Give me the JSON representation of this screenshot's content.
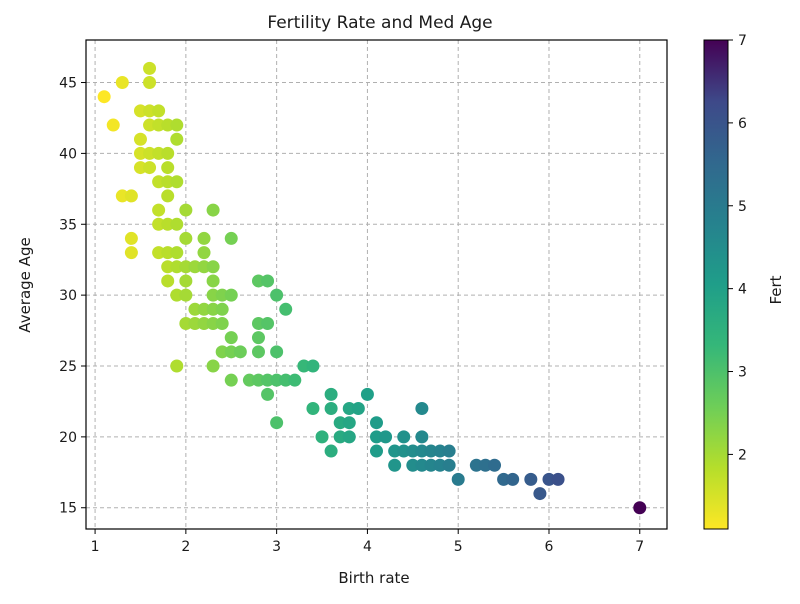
{
  "chart_data": {
    "type": "scatter",
    "title": "Fertility Rate and Med Age",
    "xlabel": "Birth rate",
    "ylabel": "Average Age",
    "xlim": [
      0.9,
      7.3
    ],
    "ylim": [
      13.5,
      48
    ],
    "xticks": [
      1,
      2,
      3,
      4,
      5,
      6,
      7
    ],
    "yticks": [
      15,
      20,
      25,
      30,
      35,
      40,
      45
    ],
    "grid": true,
    "grid_style": "dashed",
    "colormap": "viridis_r",
    "colorbar": {
      "label": "Fert",
      "range": [
        1.1,
        7.0
      ],
      "ticks": [
        2,
        3,
        4,
        5,
        6,
        7
      ]
    },
    "points": [
      {
        "x": 1.1,
        "y": 44
      },
      {
        "x": 1.2,
        "y": 42
      },
      {
        "x": 1.3,
        "y": 45
      },
      {
        "x": 1.3,
        "y": 37
      },
      {
        "x": 1.4,
        "y": 37
      },
      {
        "x": 1.4,
        "y": 34
      },
      {
        "x": 1.4,
        "y": 33
      },
      {
        "x": 1.5,
        "y": 43
      },
      {
        "x": 1.5,
        "y": 41
      },
      {
        "x": 1.5,
        "y": 40
      },
      {
        "x": 1.5,
        "y": 39
      },
      {
        "x": 1.6,
        "y": 46
      },
      {
        "x": 1.6,
        "y": 45
      },
      {
        "x": 1.6,
        "y": 43
      },
      {
        "x": 1.6,
        "y": 42
      },
      {
        "x": 1.6,
        "y": 40
      },
      {
        "x": 1.6,
        "y": 39
      },
      {
        "x": 1.7,
        "y": 43
      },
      {
        "x": 1.7,
        "y": 42
      },
      {
        "x": 1.7,
        "y": 40
      },
      {
        "x": 1.7,
        "y": 38
      },
      {
        "x": 1.7,
        "y": 36
      },
      {
        "x": 1.7,
        "y": 35
      },
      {
        "x": 1.7,
        "y": 33
      },
      {
        "x": 1.8,
        "y": 42
      },
      {
        "x": 1.8,
        "y": 40
      },
      {
        "x": 1.8,
        "y": 39
      },
      {
        "x": 1.8,
        "y": 38
      },
      {
        "x": 1.8,
        "y": 37
      },
      {
        "x": 1.8,
        "y": 35
      },
      {
        "x": 1.8,
        "y": 33
      },
      {
        "x": 1.8,
        "y": 32
      },
      {
        "x": 1.8,
        "y": 31
      },
      {
        "x": 1.9,
        "y": 42
      },
      {
        "x": 1.9,
        "y": 41
      },
      {
        "x": 1.9,
        "y": 38
      },
      {
        "x": 1.9,
        "y": 35
      },
      {
        "x": 1.9,
        "y": 33
      },
      {
        "x": 1.9,
        "y": 32
      },
      {
        "x": 1.9,
        "y": 30
      },
      {
        "x": 1.9,
        "y": 25
      },
      {
        "x": 2.0,
        "y": 36
      },
      {
        "x": 2.0,
        "y": 34
      },
      {
        "x": 2.0,
        "y": 32
      },
      {
        "x": 2.0,
        "y": 31
      },
      {
        "x": 2.0,
        "y": 30
      },
      {
        "x": 2.0,
        "y": 28
      },
      {
        "x": 2.1,
        "y": 32
      },
      {
        "x": 2.1,
        "y": 29
      },
      {
        "x": 2.1,
        "y": 28
      },
      {
        "x": 2.2,
        "y": 34
      },
      {
        "x": 2.2,
        "y": 33
      },
      {
        "x": 2.2,
        "y": 32
      },
      {
        "x": 2.2,
        "y": 29
      },
      {
        "x": 2.2,
        "y": 28
      },
      {
        "x": 2.3,
        "y": 36
      },
      {
        "x": 2.3,
        "y": 32
      },
      {
        "x": 2.3,
        "y": 31
      },
      {
        "x": 2.3,
        "y": 30
      },
      {
        "x": 2.3,
        "y": 29
      },
      {
        "x": 2.3,
        "y": 28
      },
      {
        "x": 2.3,
        "y": 25
      },
      {
        "x": 2.4,
        "y": 30
      },
      {
        "x": 2.4,
        "y": 29
      },
      {
        "x": 2.4,
        "y": 28
      },
      {
        "x": 2.4,
        "y": 26
      },
      {
        "x": 2.5,
        "y": 34
      },
      {
        "x": 2.5,
        "y": 30
      },
      {
        "x": 2.5,
        "y": 27
      },
      {
        "x": 2.5,
        "y": 26
      },
      {
        "x": 2.5,
        "y": 24
      },
      {
        "x": 2.6,
        "y": 26
      },
      {
        "x": 2.7,
        "y": 24
      },
      {
        "x": 2.8,
        "y": 31
      },
      {
        "x": 2.8,
        "y": 28
      },
      {
        "x": 2.8,
        "y": 27
      },
      {
        "x": 2.8,
        "y": 26
      },
      {
        "x": 2.8,
        "y": 24
      },
      {
        "x": 2.9,
        "y": 31
      },
      {
        "x": 2.9,
        "y": 28
      },
      {
        "x": 2.9,
        "y": 24
      },
      {
        "x": 2.9,
        "y": 23
      },
      {
        "x": 3.0,
        "y": 30
      },
      {
        "x": 3.0,
        "y": 26
      },
      {
        "x": 3.0,
        "y": 24
      },
      {
        "x": 3.0,
        "y": 21
      },
      {
        "x": 3.1,
        "y": 29
      },
      {
        "x": 3.1,
        "y": 24
      },
      {
        "x": 3.2,
        "y": 24
      },
      {
        "x": 3.3,
        "y": 25
      },
      {
        "x": 3.4,
        "y": 25
      },
      {
        "x": 3.4,
        "y": 22
      },
      {
        "x": 3.5,
        "y": 20
      },
      {
        "x": 3.6,
        "y": 23
      },
      {
        "x": 3.6,
        "y": 22
      },
      {
        "x": 3.6,
        "y": 19
      },
      {
        "x": 3.7,
        "y": 21
      },
      {
        "x": 3.7,
        "y": 20
      },
      {
        "x": 3.8,
        "y": 22
      },
      {
        "x": 3.8,
        "y": 21
      },
      {
        "x": 3.8,
        "y": 20
      },
      {
        "x": 3.9,
        "y": 22
      },
      {
        "x": 4.0,
        "y": 23
      },
      {
        "x": 4.1,
        "y": 21
      },
      {
        "x": 4.1,
        "y": 20
      },
      {
        "x": 4.1,
        "y": 19
      },
      {
        "x": 4.2,
        "y": 20
      },
      {
        "x": 4.3,
        "y": 19
      },
      {
        "x": 4.3,
        "y": 18
      },
      {
        "x": 4.4,
        "y": 20
      },
      {
        "x": 4.4,
        "y": 19
      },
      {
        "x": 4.5,
        "y": 19
      },
      {
        "x": 4.5,
        "y": 18
      },
      {
        "x": 4.6,
        "y": 22
      },
      {
        "x": 4.6,
        "y": 20
      },
      {
        "x": 4.6,
        "y": 19
      },
      {
        "x": 4.6,
        "y": 18
      },
      {
        "x": 4.7,
        "y": 19
      },
      {
        "x": 4.7,
        "y": 18
      },
      {
        "x": 4.8,
        "y": 19
      },
      {
        "x": 4.8,
        "y": 18
      },
      {
        "x": 4.9,
        "y": 19
      },
      {
        "x": 4.9,
        "y": 18
      },
      {
        "x": 5.0,
        "y": 17
      },
      {
        "x": 5.2,
        "y": 18
      },
      {
        "x": 5.3,
        "y": 18
      },
      {
        "x": 5.4,
        "y": 18
      },
      {
        "x": 5.5,
        "y": 17
      },
      {
        "x": 5.6,
        "y": 17
      },
      {
        "x": 5.8,
        "y": 17
      },
      {
        "x": 5.9,
        "y": 16
      },
      {
        "x": 6.0,
        "y": 17
      },
      {
        "x": 6.1,
        "y": 17
      },
      {
        "x": 7.0,
        "y": 15
      }
    ]
  }
}
